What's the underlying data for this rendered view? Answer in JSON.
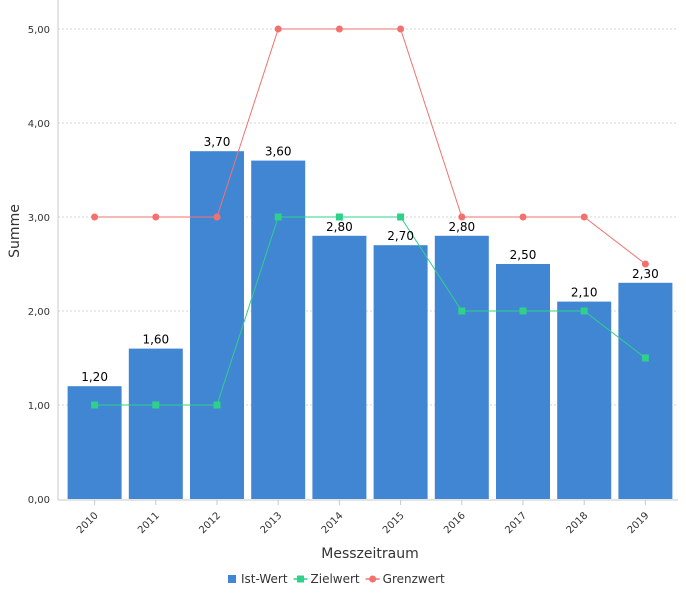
{
  "chart_data": {
    "type": "bar",
    "title": "",
    "xlabel": "Messzeitraum",
    "ylabel": "Summe",
    "ylim": [
      0,
      5.2
    ],
    "grid": true,
    "legend_position": "bottom",
    "categories": [
      "2010",
      "2011",
      "2012",
      "2013",
      "2014",
      "2015",
      "2016",
      "2017",
      "2018",
      "2019"
    ],
    "y_ticks": [
      0,
      1,
      2,
      3,
      4,
      5
    ],
    "y_tick_labels": [
      "0,00",
      "1,00",
      "2,00",
      "3,00",
      "4,00",
      "5,00"
    ],
    "series": [
      {
        "name": "Ist-Wert",
        "type": "bar",
        "color": "#4186d3",
        "values": [
          1.2,
          1.6,
          3.7,
          3.6,
          2.8,
          2.7,
          2.8,
          2.5,
          2.1,
          2.3
        ],
        "labels": [
          "1,20",
          "1,60",
          "3,70",
          "3,60",
          "2,80",
          "2,70",
          "2,80",
          "2,50",
          "2,10",
          "2,30"
        ]
      },
      {
        "name": "Zielwert",
        "type": "line",
        "marker": "square",
        "color": "#2fd08a",
        "values": [
          1,
          1,
          1,
          3,
          3,
          3,
          2,
          2,
          2,
          1.5
        ]
      },
      {
        "name": "Grenzwert",
        "type": "line",
        "marker": "circle",
        "color": "#f2716e",
        "values": [
          3,
          3,
          3,
          5,
          5,
          5,
          3,
          3,
          3,
          2.5
        ]
      }
    ]
  }
}
